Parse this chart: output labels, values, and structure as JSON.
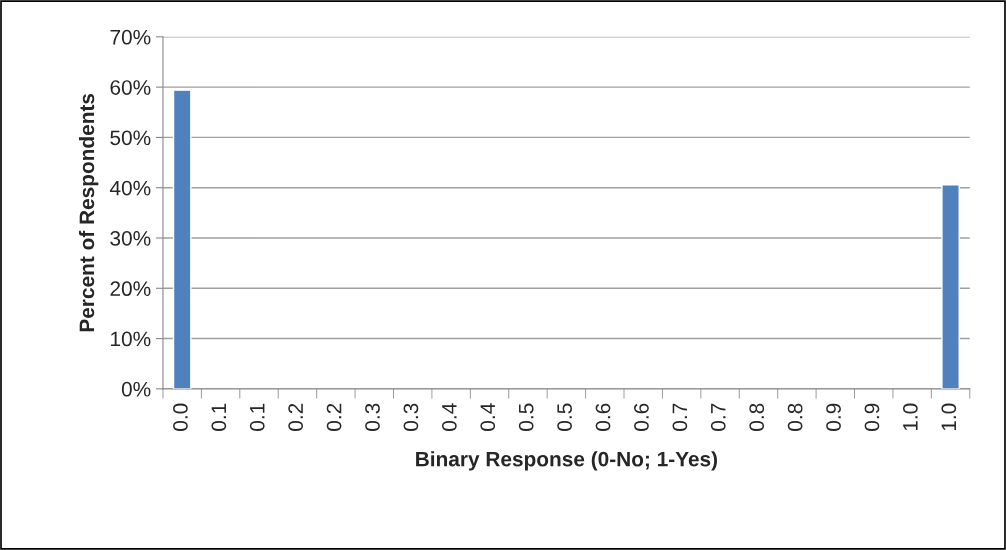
{
  "chart_data": {
    "type": "bar",
    "xlabel": "Binary Response (0-No; 1-Yes)",
    "ylabel": "Percent of Respondents",
    "categories": [
      "0.0",
      "0.1",
      "0.1",
      "0.2",
      "0.2",
      "0.3",
      "0.3",
      "0.4",
      "0.4",
      "0.5",
      "0.5",
      "0.6",
      "0.6",
      "0.7",
      "0.7",
      "0.8",
      "0.8",
      "0.9",
      "0.9",
      "1.0",
      "1.0"
    ],
    "values": [
      59.4,
      null,
      null,
      null,
      null,
      null,
      null,
      null,
      null,
      null,
      null,
      null,
      null,
      null,
      null,
      null,
      null,
      null,
      null,
      null,
      40.6
    ],
    "color": "#4f81bd",
    "ylim": [
      0,
      70
    ],
    "yticks": [
      {
        "value": 0,
        "label": "0%"
      },
      {
        "value": 10,
        "label": "10%"
      },
      {
        "value": 20,
        "label": "20%"
      },
      {
        "value": 30,
        "label": "30%"
      },
      {
        "value": 40,
        "label": "40%"
      },
      {
        "value": 50,
        "label": "50%"
      },
      {
        "value": 60,
        "label": "60%"
      },
      {
        "value": 70,
        "label": "70%"
      }
    ],
    "grid": "y",
    "legend": false
  }
}
